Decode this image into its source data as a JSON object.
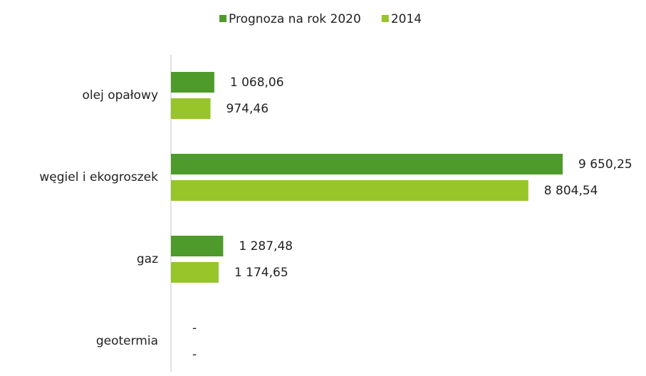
{
  "chart_data": {
    "type": "bar",
    "orientation": "horizontal",
    "categories": [
      "olej opałowy",
      "węgiel i ekogroszek",
      "gaz",
      "geotermia"
    ],
    "series": [
      {
        "name": "Prognoza na rok 2020",
        "color": "#4e9a2a",
        "values": [
          1068.06,
          9650.25,
          1287.48,
          0
        ],
        "value_labels": [
          "1 068,06",
          "9 650,25",
          "1 287,48",
          "-"
        ]
      },
      {
        "name": "2014",
        "color": "#97c52a",
        "values": [
          974.46,
          8804.54,
          1174.65,
          0
        ],
        "value_labels": [
          "974,46",
          "8 804,54",
          "1 174,65",
          "-"
        ]
      }
    ],
    "legend": "top"
  }
}
